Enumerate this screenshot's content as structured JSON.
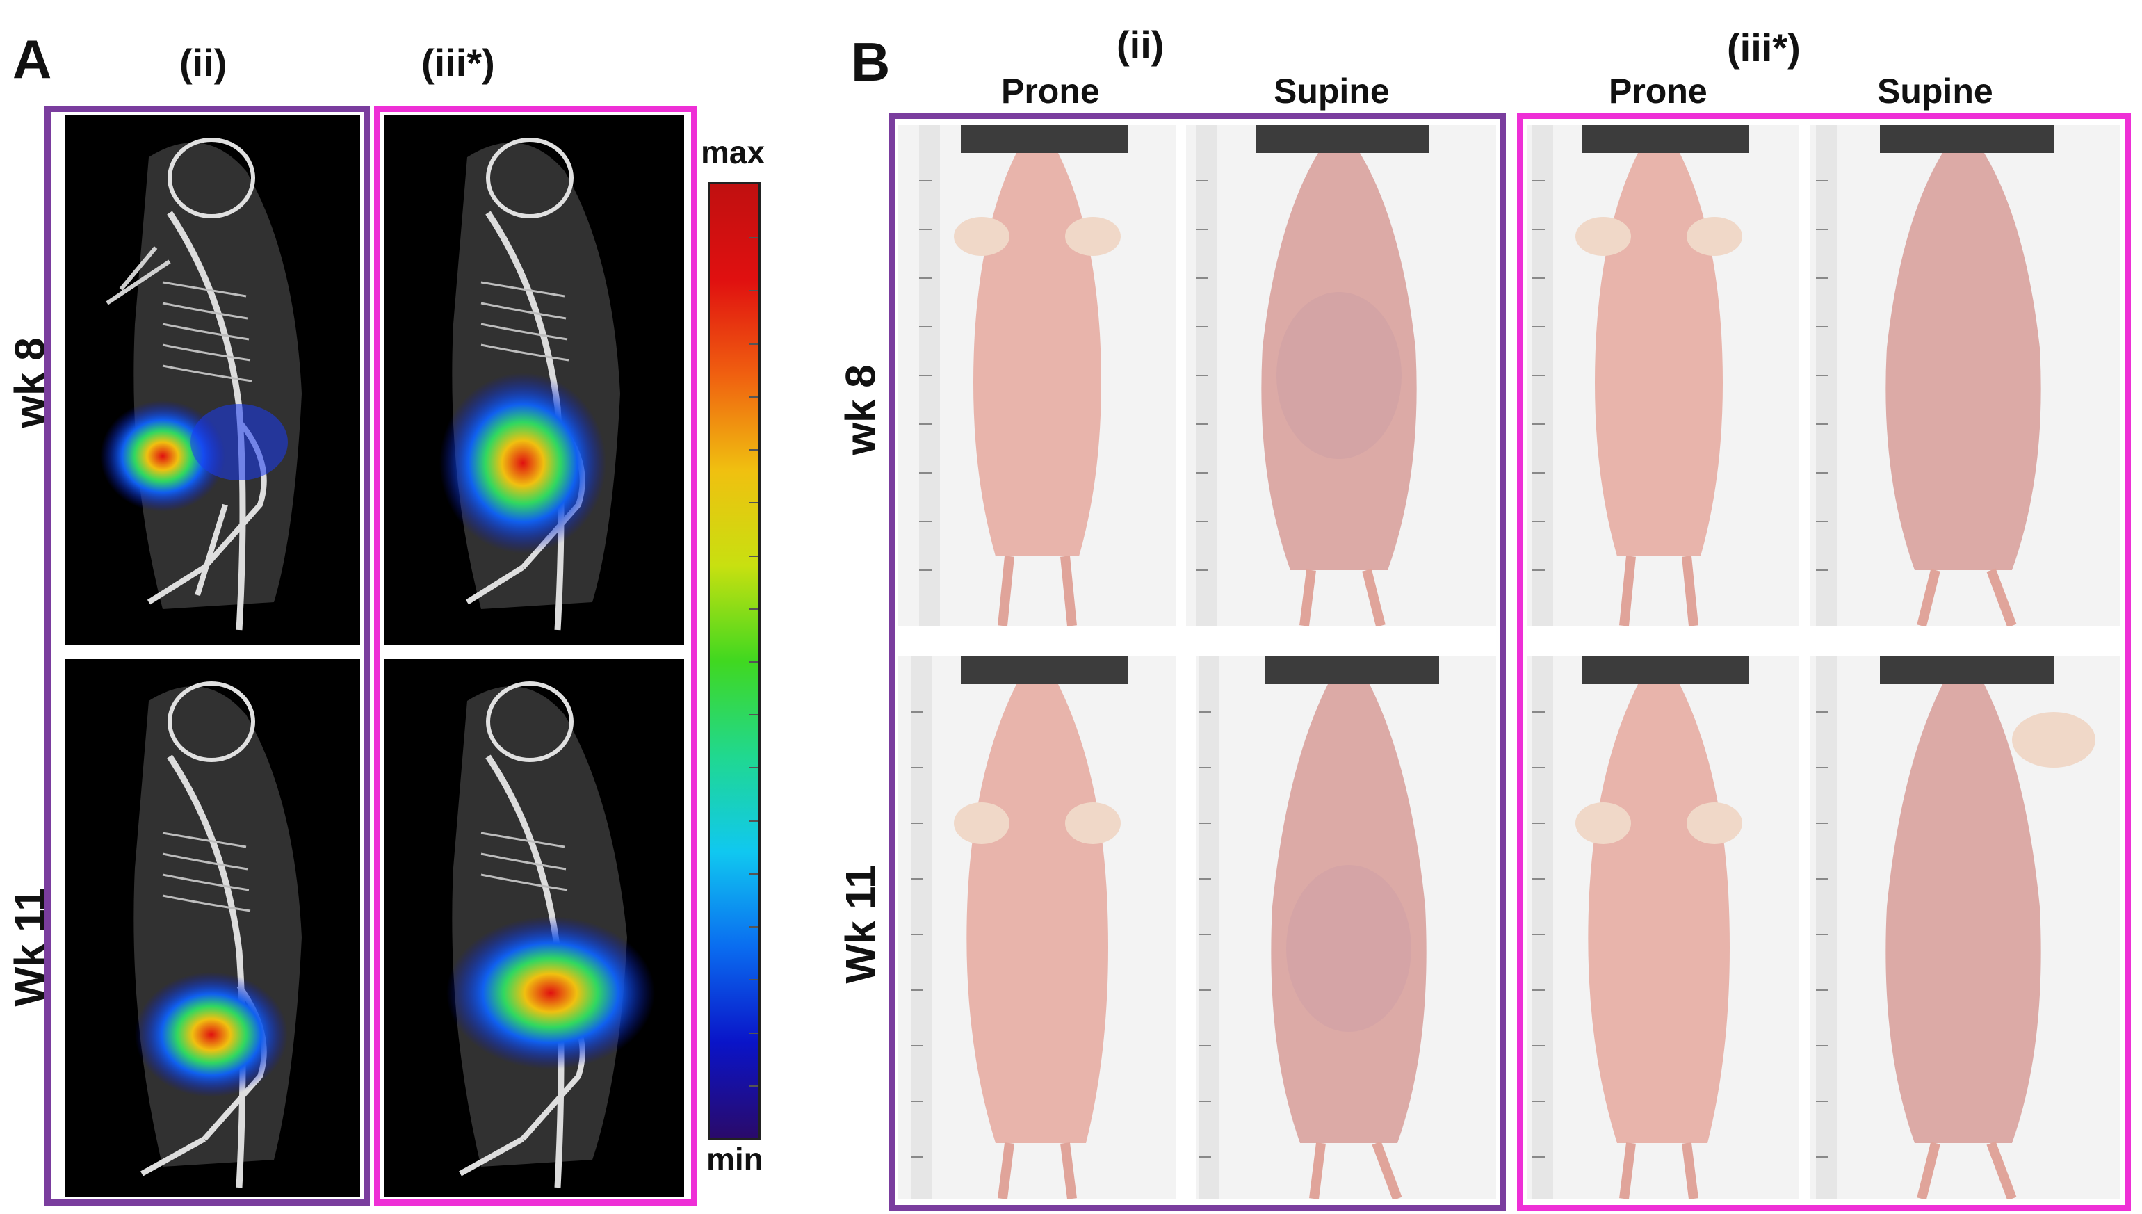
{
  "panel_a": {
    "letter": "A",
    "groups": [
      {
        "label": "(ii)",
        "color": "#7a3d9e"
      },
      {
        "label": "(iii*)",
        "color": "#ee2fd6"
      }
    ],
    "rows": [
      "wk 8",
      "Wk 11"
    ],
    "colorbar": {
      "max_label": "max",
      "min_label": "min",
      "stops": [
        "#2a0a6a",
        "#0a14c8",
        "#0a6cf0",
        "#10c8f0",
        "#20d890",
        "#40d820",
        "#c8e010",
        "#f0c010",
        "#f06010",
        "#e01010",
        "#c01010"
      ]
    }
  },
  "panel_b": {
    "letter": "B",
    "groups": [
      {
        "label": "(ii)",
        "color": "#7a3d9e",
        "positions": [
          "Prone",
          "Supine"
        ]
      },
      {
        "label": "(iii*)",
        "color": "#ee2fd6",
        "positions": [
          "Prone",
          "Supine"
        ]
      }
    ],
    "rows": [
      "wk 8",
      "Wk 11"
    ]
  },
  "colors": {
    "purple": "#7a3d9e",
    "magenta": "#ee2fd6",
    "skin": "#e8b4ab",
    "background_dark": "#000000"
  }
}
